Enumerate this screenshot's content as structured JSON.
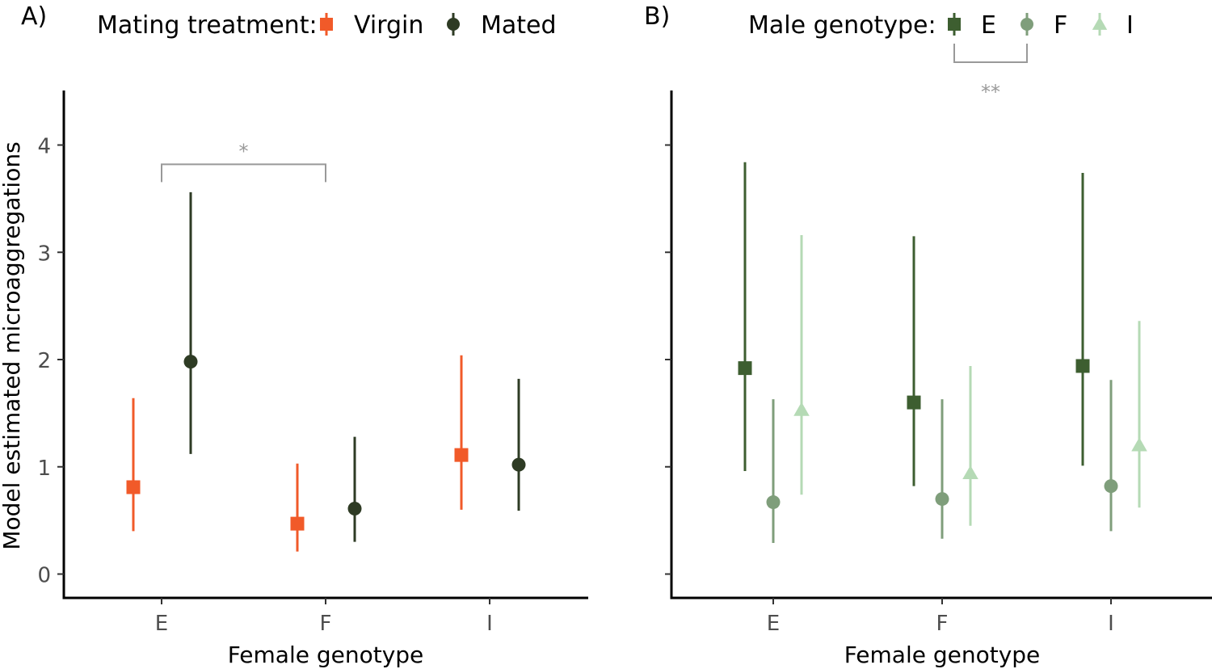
{
  "colors": {
    "virgin": "#f15a29",
    "mated": "#2e3b24",
    "male_E": "#3d5e30",
    "male_F": "#7f9e7b",
    "male_I": "#b5dab5",
    "axis": "#000000",
    "tick_label": "#4d4d4d",
    "annotation": "#999999"
  },
  "chart_data": [
    {
      "type": "scatter",
      "panel_label": "A)",
      "legend_title": "Mating treatment:",
      "legend_position": "top",
      "xlabel": "Female genotype",
      "ylabel": "Model estimated microaggregations",
      "categories": [
        "E",
        "F",
        "I"
      ],
      "ylim": [
        -0.2,
        4.5
      ],
      "yticks": [
        0,
        1,
        2,
        3,
        4
      ],
      "grid": false,
      "series": [
        {
          "name": "Virgin",
          "shape": "square",
          "color_key": "virgin",
          "values": [
            0.81,
            0.47,
            1.11
          ],
          "lower": [
            0.4,
            0.21,
            0.6
          ],
          "upper": [
            1.64,
            1.03,
            2.04
          ]
        },
        {
          "name": "Mated",
          "shape": "circle",
          "color_key": "mated",
          "values": [
            1.98,
            0.61,
            1.02
          ],
          "lower": [
            1.12,
            0.3,
            0.59
          ],
          "upper": [
            3.56,
            1.28,
            1.82
          ]
        }
      ],
      "annotations": [
        {
          "label": "*",
          "from": "E",
          "to": "F",
          "y": 3.82
        }
      ]
    },
    {
      "type": "scatter",
      "panel_label": "B)",
      "legend_title": "Male genotype:",
      "legend_position": "top",
      "xlabel": "Female genotype",
      "ylabel": "",
      "categories": [
        "E",
        "F",
        "I"
      ],
      "ylim": [
        -0.2,
        4.5
      ],
      "yticks": [
        0,
        1,
        2,
        3,
        4
      ],
      "show_tick_labels": false,
      "grid": false,
      "series": [
        {
          "name": "E",
          "shape": "square",
          "color_key": "male_E",
          "values": [
            1.92,
            1.6,
            1.94
          ],
          "lower": [
            0.96,
            0.82,
            1.01
          ],
          "upper": [
            3.84,
            3.15,
            3.74
          ]
        },
        {
          "name": "F",
          "shape": "circle",
          "color_key": "male_F",
          "values": [
            0.67,
            0.7,
            0.82
          ],
          "lower": [
            0.29,
            0.33,
            0.4
          ],
          "upper": [
            1.63,
            1.63,
            1.81
          ]
        },
        {
          "name": "I",
          "shape": "triangle",
          "color_key": "male_I",
          "values": [
            1.53,
            0.94,
            1.2
          ],
          "lower": [
            0.74,
            0.45,
            0.62
          ],
          "upper": [
            3.16,
            1.94,
            2.36
          ]
        }
      ],
      "legend_annotation": {
        "label": "**",
        "from": "E",
        "to": "F"
      }
    }
  ]
}
